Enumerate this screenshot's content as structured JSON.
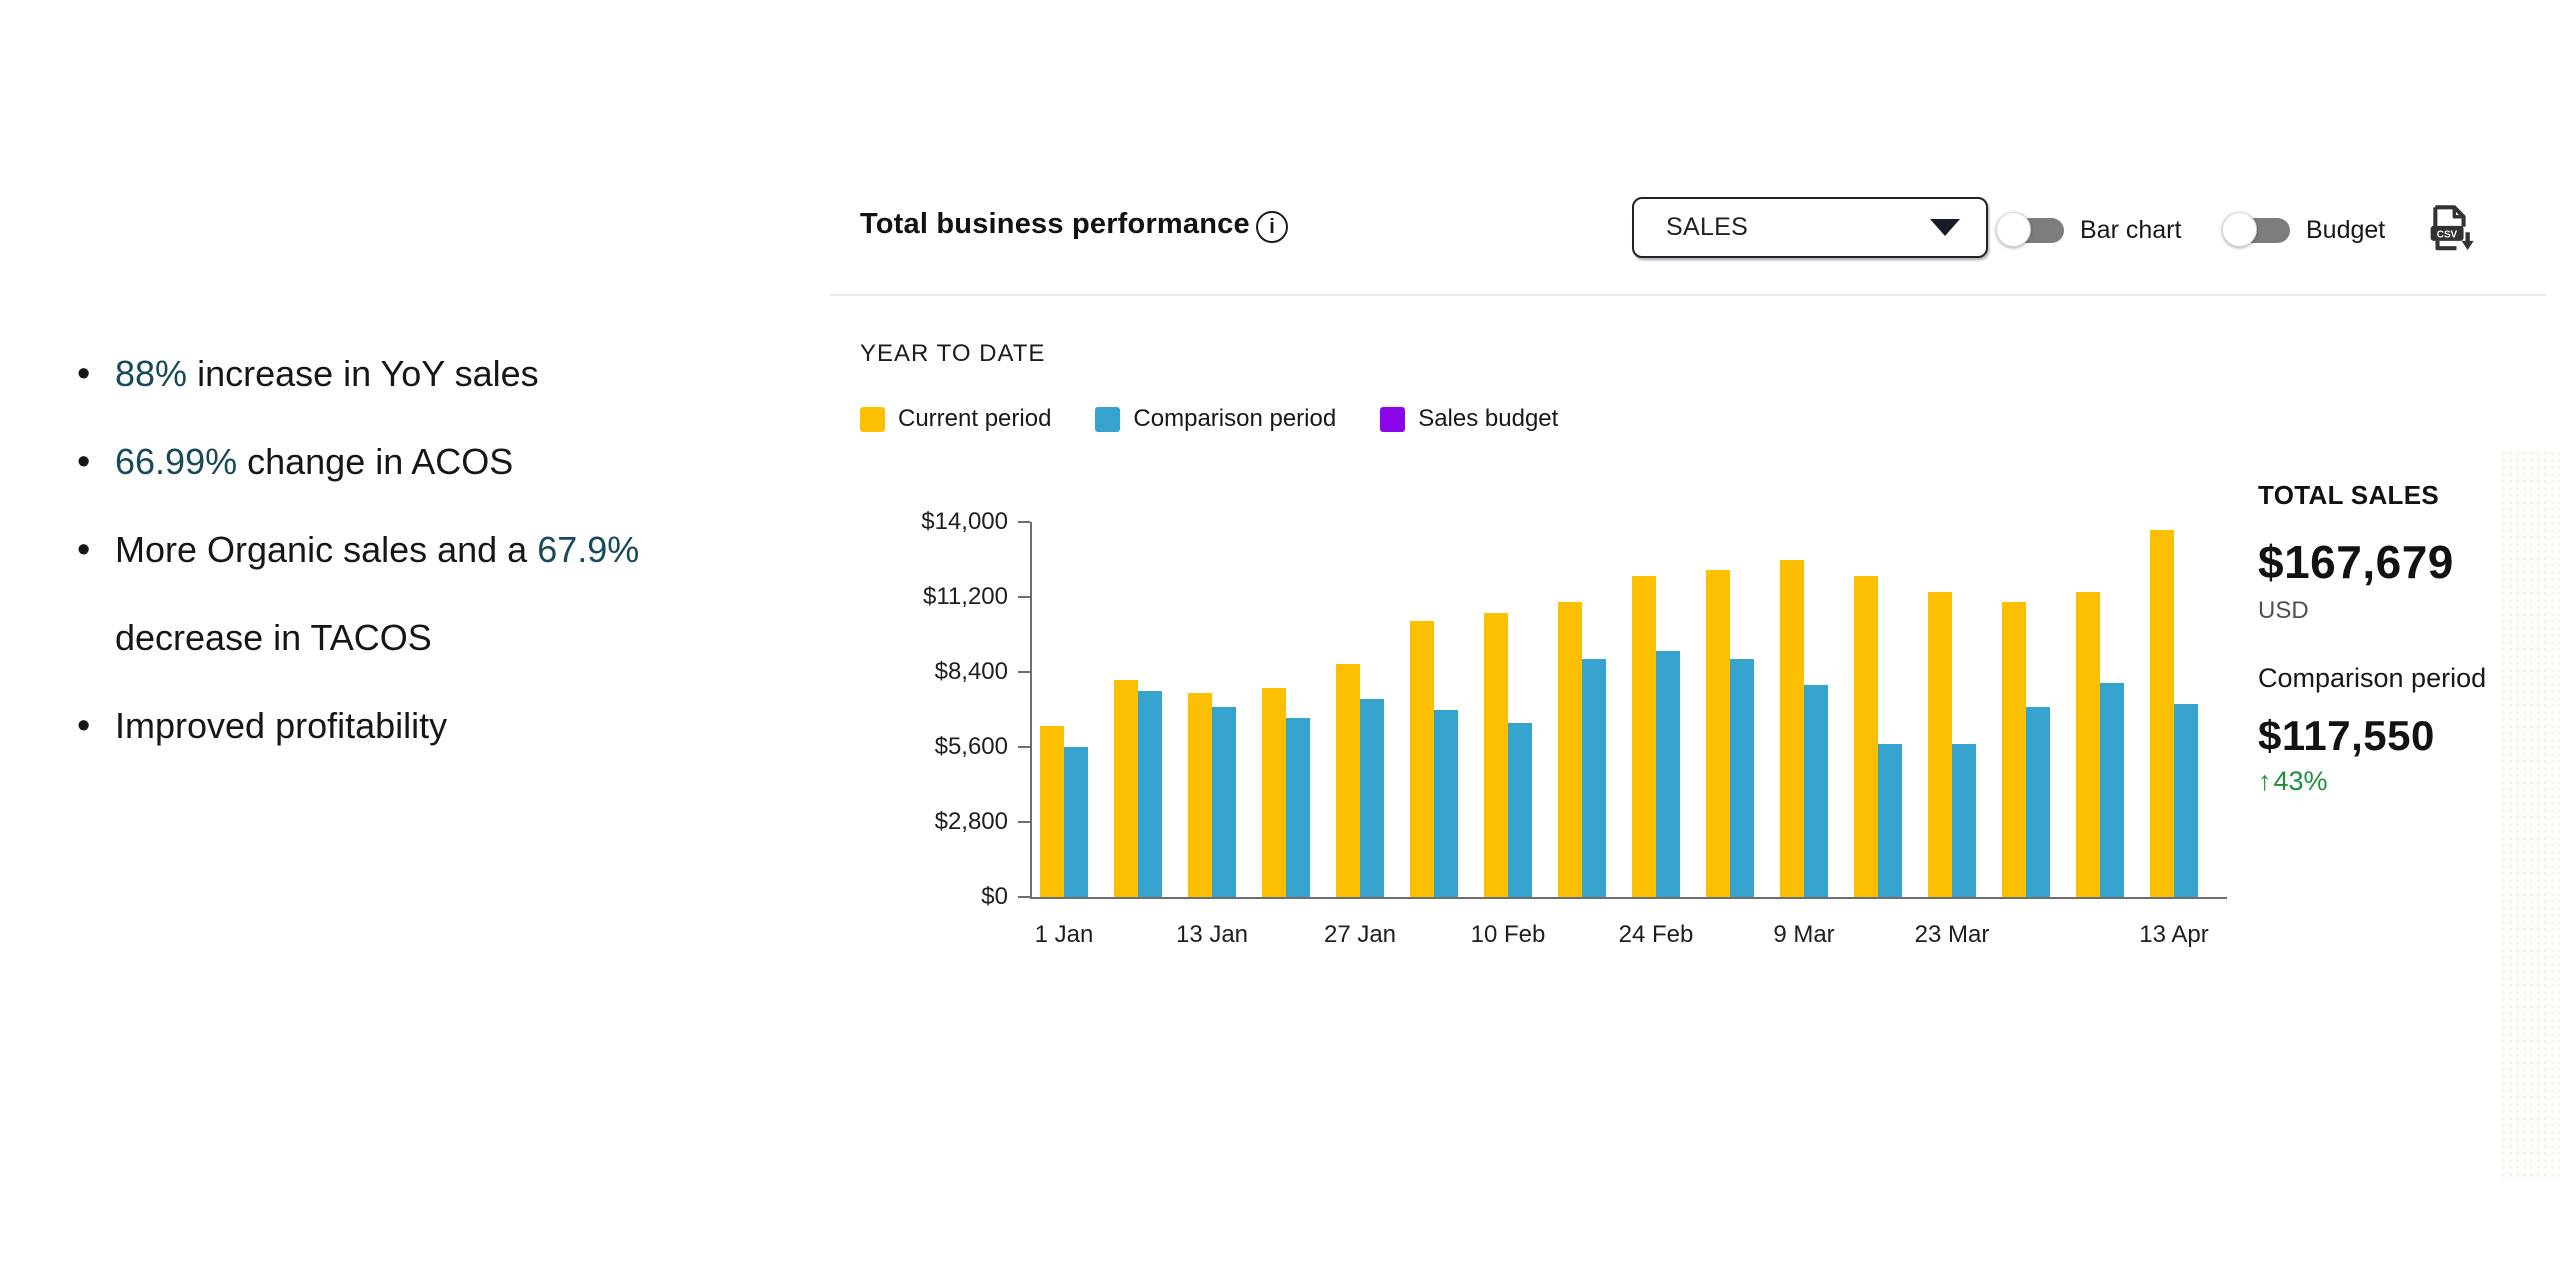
{
  "insights": {
    "items": [
      {
        "prefix": "",
        "highlight": "88%",
        "suffix": " increase in YoY sales"
      },
      {
        "prefix": "",
        "highlight": "66.99%",
        "suffix": " change in ACOS"
      },
      {
        "prefix": "More Organic sales and a ",
        "highlight": "67.9%",
        "suffix": " decrease in TACOS"
      },
      {
        "prefix": "Improved profitability",
        "highlight": "",
        "suffix": ""
      }
    ]
  },
  "header": {
    "title": "Total business performance",
    "info_icon_glyph": "i",
    "metric_select": {
      "value": "SALES"
    },
    "toggles": [
      {
        "label": "Bar chart",
        "state": "off"
      },
      {
        "label": "Budget",
        "state": "off"
      }
    ],
    "export_icon": "csv-download-icon",
    "export_icon_text": "CSV"
  },
  "chart_data": {
    "type": "bar",
    "title": "YEAR TO DATE",
    "xlabel": "",
    "ylabel": "",
    "ylim": [
      0,
      14000
    ],
    "grid": false,
    "legend_position": "top",
    "groups": 16,
    "y_tick_values": [
      0,
      2800,
      5600,
      8400,
      11200,
      14000
    ],
    "y_tick_labels": [
      "$0",
      "$2,800",
      "$5,600",
      "$8,400",
      "$11,200",
      "$14,000"
    ],
    "x_tick_labels": [
      {
        "group": 1,
        "label": "1 Jan"
      },
      {
        "group": 3,
        "label": "13 Jan"
      },
      {
        "group": 5,
        "label": "27 Jan"
      },
      {
        "group": 7,
        "label": "10 Feb"
      },
      {
        "group": 9,
        "label": "24 Feb"
      },
      {
        "group": 11,
        "label": "9 Mar"
      },
      {
        "group": 13,
        "label": "23 Mar"
      },
      {
        "group": 16,
        "label": "13 Apr"
      }
    ],
    "series": [
      {
        "name": "Current period",
        "color": "#FCBF02",
        "values": [
          6400,
          8100,
          7600,
          7800,
          8700,
          10300,
          10600,
          11000,
          12000,
          12200,
          12600,
          12000,
          11400,
          11000,
          11400,
          13700
        ]
      },
      {
        "name": "Comparison period",
        "color": "#35A3CE",
        "values": [
          5600,
          7700,
          7100,
          6700,
          7400,
          7000,
          6500,
          8900,
          9200,
          8900,
          7900,
          5700,
          5700,
          7100,
          8000,
          7200
        ]
      },
      {
        "name": "Sales budget",
        "color": "#8A05E8",
        "values": []
      }
    ]
  },
  "summary": {
    "total_label": "TOTAL SALES",
    "total_value": "$167,679",
    "currency": "USD",
    "comparison_label": "Comparison period",
    "comparison_value": "$117,550",
    "change_arrow": "↑",
    "change": "43%",
    "change_direction": "up"
  },
  "colors": {
    "accent_yellow": "#FCBF02",
    "accent_blue": "#35A3CE",
    "accent_purple": "#8A05E8",
    "highlight_teal": "#174a59",
    "positive_green": "#1E8E3E",
    "text": "#161616",
    "axis": "#6e6e6e",
    "divider": "#e9e9e9",
    "toggle_track": "#7d7d7d"
  }
}
